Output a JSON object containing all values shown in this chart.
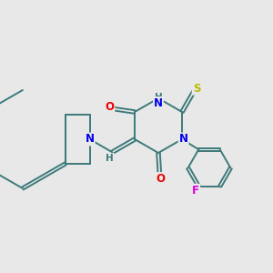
{
  "bg_color": "#e8e8e8",
  "bond_color": "#3d7a7a",
  "atom_colors": {
    "N": "#0000ee",
    "O": "#ee0000",
    "S": "#bbbb00",
    "F": "#dd00dd",
    "H": "#3d7a7a",
    "C": "#3d7a7a"
  },
  "bond_width": 1.4,
  "doff": 0.07,
  "fs": 8.5,
  "fsH": 7.5
}
